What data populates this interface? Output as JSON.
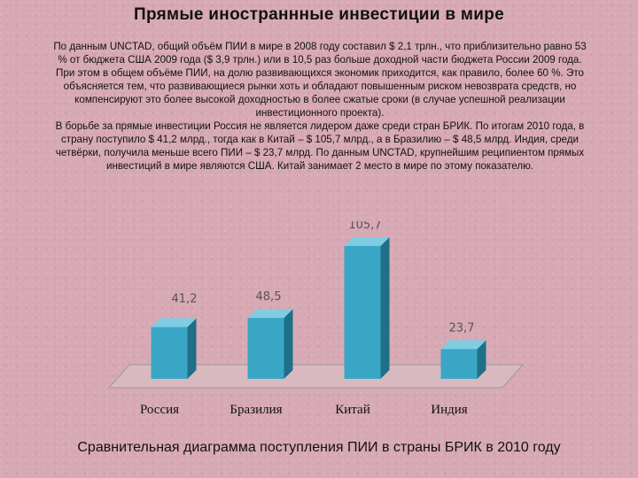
{
  "slide": {
    "title": "Прямые иностраннные инвестиции в мире",
    "paragraphs": [
      "По данным UNCTAD, общий объём ПИИ в мире в 2008 году составил $ 2,1 трлн., что приблизительно равно 53 % от бюджета США 2009 года ($ 3,9 трлн.) или в 10,5 раз больше доходной части бюджета России 2009 года.",
      "При этом в общем объёме ПИИ, на долю развивающихся экономик приходится, как правило, более 60 %. Это объясняется тем, что развивающиеся рынки хоть и обладают повышенным риском невозврата средств, но компенсируют это более высокой доходностью в более сжатые сроки (в случае успешной реализации инвестиционного проекта).",
      "В борьбе за прямые инвестиции Россия не является лидером даже среди стран БРИК. По итогам 2010 года, в страну поступило $ 41,2 млрд., тогда как в Китай – $ 105,7 млрд., а в Бразилию – $ 48,5 млрд. Индия, среди четвёрки, получила меньше всего ПИИ – $ 23,7 млрд. По данным UNCTAD, крупнейшим реципиентом прямых инвестиций в мире являются США. Китай занимает 2 место в мире по этому показателю."
    ],
    "caption": "Сравнительная диаграмма поступления ПИИ в страны БРИК в 2010 году"
  },
  "chart_data": {
    "type": "bar",
    "categories": [
      "Россия",
      "Бразилия",
      "Китай",
      "Индия"
    ],
    "values": [
      41.2,
      48.5,
      105.7,
      23.7
    ],
    "value_labels": [
      "41,2",
      "48,5",
      "105,7",
      "23,7"
    ],
    "title": "",
    "xlabel": "",
    "ylabel": "",
    "ylim": [
      0,
      110
    ],
    "grid": false,
    "legend": "none",
    "style": "3d",
    "bar_color": "#3aa6c6",
    "bar_side_color": "#1f6f87",
    "bar_top_color": "#7fcde3"
  }
}
